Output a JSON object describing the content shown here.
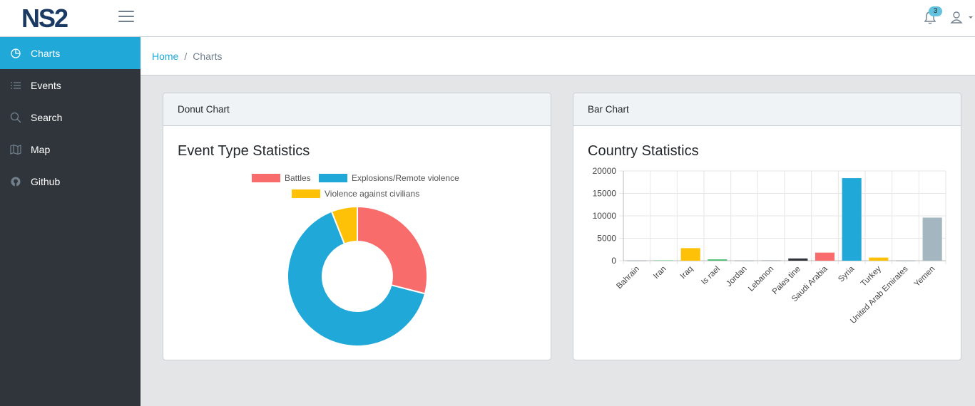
{
  "header": {
    "logo_text": "NS2",
    "notification_count": "3"
  },
  "sidebar": {
    "items": [
      {
        "label": "Charts",
        "icon": "chart-pie-icon"
      },
      {
        "label": "Events",
        "icon": "list-icon"
      },
      {
        "label": "Search",
        "icon": "search-icon"
      },
      {
        "label": "Map",
        "icon": "map-icon"
      },
      {
        "label": "Github",
        "icon": "github-icon"
      }
    ]
  },
  "breadcrumb": {
    "home": "Home",
    "separator": "/",
    "current": "Charts"
  },
  "donut_card": {
    "header": "Donut Chart",
    "title": "Event Type Statistics",
    "legend": [
      "Battles",
      "Explosions/Remote violence",
      "Violence against civilians"
    ]
  },
  "bar_card": {
    "header": "Bar Chart",
    "title": "Country Statistics"
  },
  "colors": {
    "accent": "#20a8d8",
    "sidebar_bg": "#2f353a",
    "battles": "#f86c6b",
    "explosions": "#20a8d8",
    "civilians": "#ffc107"
  },
  "chart_data": [
    {
      "type": "pie",
      "subtype": "donut",
      "title": "Event Type Statistics",
      "categories": [
        "Battles",
        "Explosions/Remote violence",
        "Violence against civilians"
      ],
      "values": [
        29,
        65,
        6
      ],
      "colors": [
        "#f86c6b",
        "#20a8d8",
        "#ffc107"
      ],
      "legend_position": "top"
    },
    {
      "type": "bar",
      "title": "Country Statistics",
      "categories": [
        "Bahrain",
        "Iran",
        "Iraq",
        "Israel",
        "Jordan",
        "Lebanon",
        "Palestine",
        "Saudi Arabia",
        "Syria",
        "Turkey",
        "United Arab Emirates",
        "Yemen"
      ],
      "category_labels": [
        "Bahrain",
        "Iran",
        "Iraq",
        "Is rael",
        "Jordan",
        "Lebanon",
        "Pales tine",
        "Saudi Arabia",
        "Syria",
        "Turkey",
        "United Arab Emirates",
        "Yemen"
      ],
      "values": [
        30,
        80,
        2800,
        300,
        20,
        50,
        500,
        1800,
        18400,
        700,
        20,
        9600
      ],
      "colors": [
        "#73818f",
        "#4dbd74",
        "#ffc107",
        "#4dbd74",
        "#73818f",
        "#73818f",
        "#2f353a",
        "#f86c6b",
        "#20a8d8",
        "#ffc107",
        "#73818f",
        "#a4b7c1"
      ],
      "ylim": [
        0,
        20000
      ],
      "yticks": [
        0,
        5000,
        10000,
        15000,
        20000
      ],
      "grid": true
    }
  ]
}
